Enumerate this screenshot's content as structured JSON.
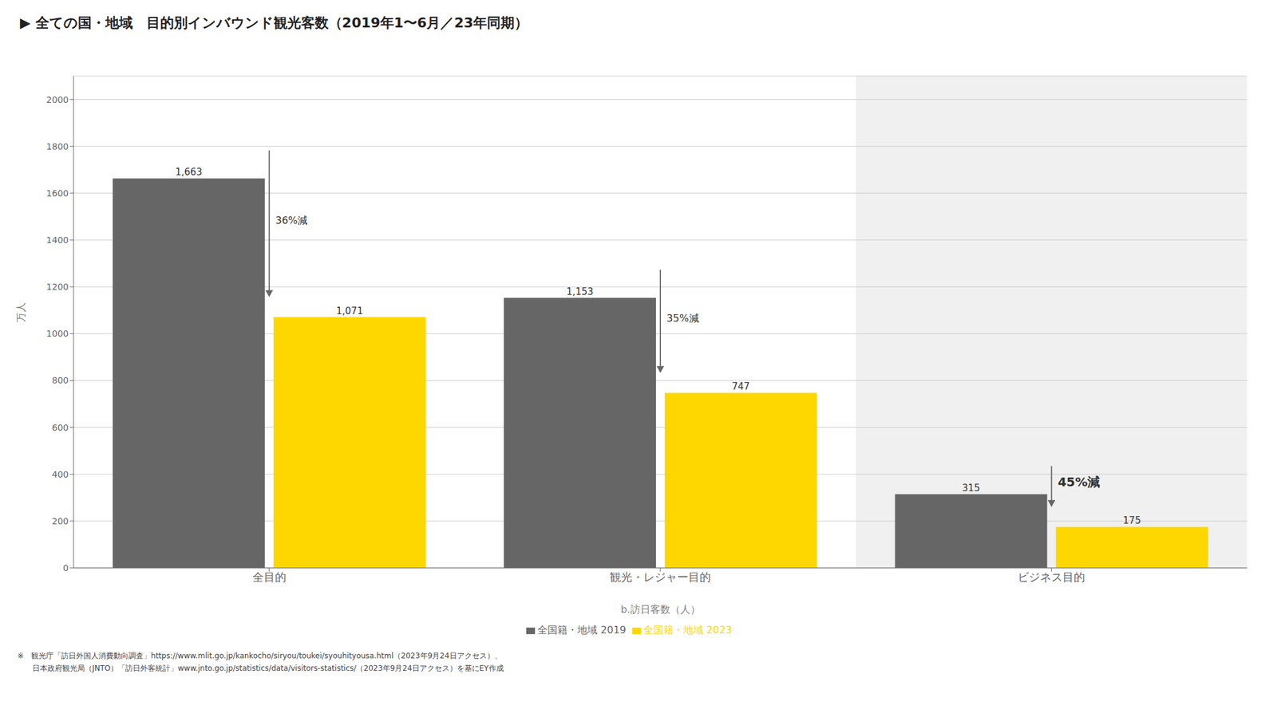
{
  "chart_data": {
    "type": "bar",
    "title": "▶  全ての国・地域　目的別インバウンド観光客数（2019年1〜6月／23年同期）",
    "ylabel": "万人",
    "xlabel": "b.訪日客数（人）",
    "categories": [
      "全目的",
      "観光・レジャー目的",
      "ビジネス目的"
    ],
    "series": [
      {
        "name": "全国籍・地域 2019",
        "color": "#666666",
        "values": [
          1663,
          1153,
          315
        ],
        "value_labels": [
          "1,663",
          "1,153",
          "315"
        ]
      },
      {
        "name": "全国籍・地域 2023",
        "color": "#FFD700",
        "values": [
          1071,
          747,
          175
        ],
        "value_labels": [
          "1,071",
          "747",
          "175"
        ]
      }
    ],
    "annotations": [
      "36%減",
      "35%減",
      "45%減"
    ],
    "footnote": [
      "※　観光庁「訪日外国人消費動向調査」https://www.mlit.go.jp/kankocho/siryou/toukei/syouhityousa.html（2023年9月24日アクセス）、",
      "　　日本政府観光局（JNTO）「訪日外客統計」www.jnto.go.jp/statistics/data/visitors-statistics/（2023年9月24日アクセス）を基にEY作成"
    ],
    "ylim": [
      0,
      2100
    ],
    "yticks": [
      0,
      200,
      400,
      600,
      800,
      1000,
      1200,
      1400,
      1600,
      1800,
      2000
    ],
    "grid": true,
    "legend": "bottom",
    "data_labels": true
  }
}
